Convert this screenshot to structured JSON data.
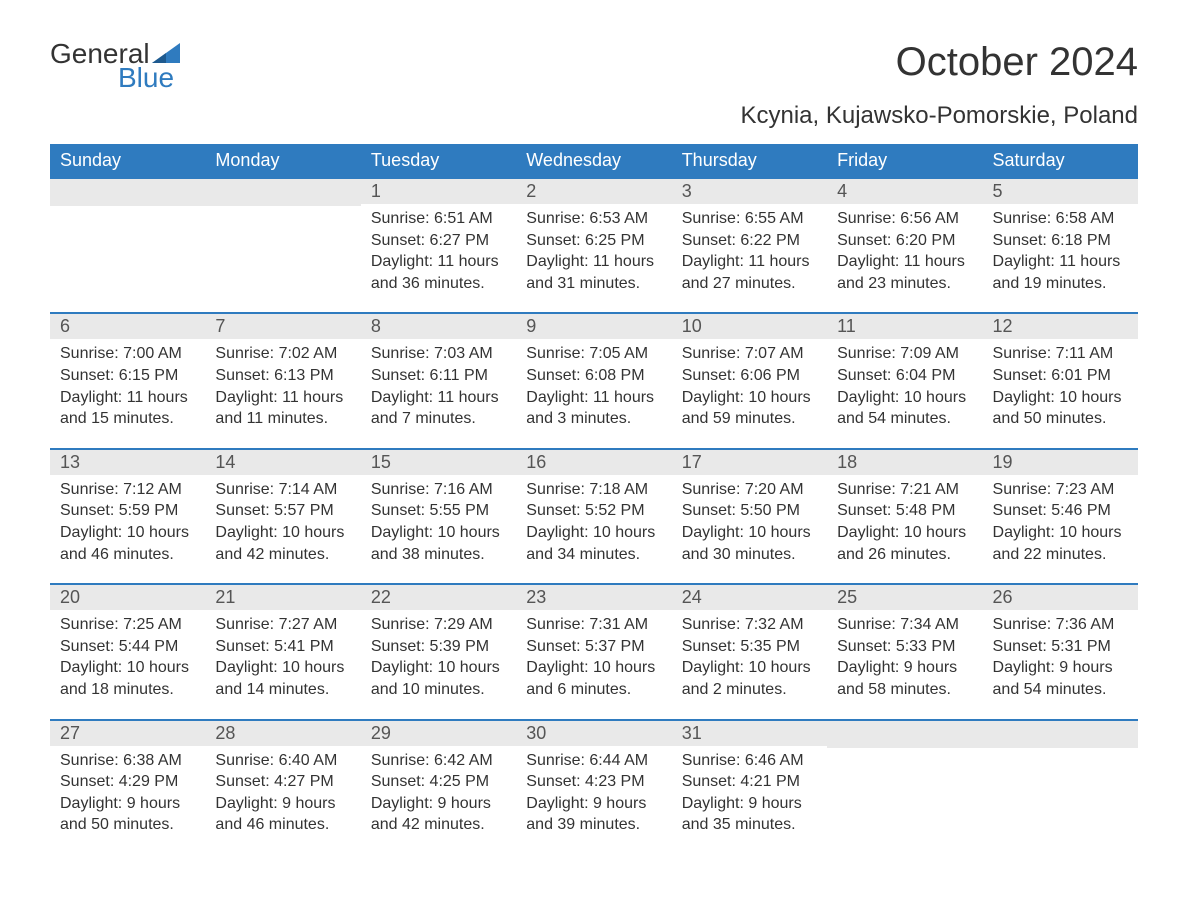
{
  "logo": {
    "part1": "General",
    "part2": "Blue"
  },
  "title": "October 2024",
  "location": "Kcynia, Kujawsko-Pomorskie, Poland",
  "colors": {
    "header_bg": "#2f7bbf",
    "header_text": "#ffffff",
    "daynum_bg": "#e9e9e9",
    "daynum_text": "#555555",
    "body_text": "#333333",
    "border": "#2f7bbf",
    "background": "#ffffff",
    "logo_accent": "#2f7bbf"
  },
  "typography": {
    "title_fontsize": 40,
    "location_fontsize": 24,
    "header_fontsize": 18,
    "daynum_fontsize": 18,
    "body_fontsize": 16,
    "logo_fontsize": 28
  },
  "weekdays": [
    "Sunday",
    "Monday",
    "Tuesday",
    "Wednesday",
    "Thursday",
    "Friday",
    "Saturday"
  ],
  "weeks": [
    [
      null,
      null,
      {
        "day": "1",
        "sunrise": "Sunrise: 6:51 AM",
        "sunset": "Sunset: 6:27 PM",
        "daylight1": "Daylight: 11 hours",
        "daylight2": "and 36 minutes."
      },
      {
        "day": "2",
        "sunrise": "Sunrise: 6:53 AM",
        "sunset": "Sunset: 6:25 PM",
        "daylight1": "Daylight: 11 hours",
        "daylight2": "and 31 minutes."
      },
      {
        "day": "3",
        "sunrise": "Sunrise: 6:55 AM",
        "sunset": "Sunset: 6:22 PM",
        "daylight1": "Daylight: 11 hours",
        "daylight2": "and 27 minutes."
      },
      {
        "day": "4",
        "sunrise": "Sunrise: 6:56 AM",
        "sunset": "Sunset: 6:20 PM",
        "daylight1": "Daylight: 11 hours",
        "daylight2": "and 23 minutes."
      },
      {
        "day": "5",
        "sunrise": "Sunrise: 6:58 AM",
        "sunset": "Sunset: 6:18 PM",
        "daylight1": "Daylight: 11 hours",
        "daylight2": "and 19 minutes."
      }
    ],
    [
      {
        "day": "6",
        "sunrise": "Sunrise: 7:00 AM",
        "sunset": "Sunset: 6:15 PM",
        "daylight1": "Daylight: 11 hours",
        "daylight2": "and 15 minutes."
      },
      {
        "day": "7",
        "sunrise": "Sunrise: 7:02 AM",
        "sunset": "Sunset: 6:13 PM",
        "daylight1": "Daylight: 11 hours",
        "daylight2": "and 11 minutes."
      },
      {
        "day": "8",
        "sunrise": "Sunrise: 7:03 AM",
        "sunset": "Sunset: 6:11 PM",
        "daylight1": "Daylight: 11 hours",
        "daylight2": "and 7 minutes."
      },
      {
        "day": "9",
        "sunrise": "Sunrise: 7:05 AM",
        "sunset": "Sunset: 6:08 PM",
        "daylight1": "Daylight: 11 hours",
        "daylight2": "and 3 minutes."
      },
      {
        "day": "10",
        "sunrise": "Sunrise: 7:07 AM",
        "sunset": "Sunset: 6:06 PM",
        "daylight1": "Daylight: 10 hours",
        "daylight2": "and 59 minutes."
      },
      {
        "day": "11",
        "sunrise": "Sunrise: 7:09 AM",
        "sunset": "Sunset: 6:04 PM",
        "daylight1": "Daylight: 10 hours",
        "daylight2": "and 54 minutes."
      },
      {
        "day": "12",
        "sunrise": "Sunrise: 7:11 AM",
        "sunset": "Sunset: 6:01 PM",
        "daylight1": "Daylight: 10 hours",
        "daylight2": "and 50 minutes."
      }
    ],
    [
      {
        "day": "13",
        "sunrise": "Sunrise: 7:12 AM",
        "sunset": "Sunset: 5:59 PM",
        "daylight1": "Daylight: 10 hours",
        "daylight2": "and 46 minutes."
      },
      {
        "day": "14",
        "sunrise": "Sunrise: 7:14 AM",
        "sunset": "Sunset: 5:57 PM",
        "daylight1": "Daylight: 10 hours",
        "daylight2": "and 42 minutes."
      },
      {
        "day": "15",
        "sunrise": "Sunrise: 7:16 AM",
        "sunset": "Sunset: 5:55 PM",
        "daylight1": "Daylight: 10 hours",
        "daylight2": "and 38 minutes."
      },
      {
        "day": "16",
        "sunrise": "Sunrise: 7:18 AM",
        "sunset": "Sunset: 5:52 PM",
        "daylight1": "Daylight: 10 hours",
        "daylight2": "and 34 minutes."
      },
      {
        "day": "17",
        "sunrise": "Sunrise: 7:20 AM",
        "sunset": "Sunset: 5:50 PM",
        "daylight1": "Daylight: 10 hours",
        "daylight2": "and 30 minutes."
      },
      {
        "day": "18",
        "sunrise": "Sunrise: 7:21 AM",
        "sunset": "Sunset: 5:48 PM",
        "daylight1": "Daylight: 10 hours",
        "daylight2": "and 26 minutes."
      },
      {
        "day": "19",
        "sunrise": "Sunrise: 7:23 AM",
        "sunset": "Sunset: 5:46 PM",
        "daylight1": "Daylight: 10 hours",
        "daylight2": "and 22 minutes."
      }
    ],
    [
      {
        "day": "20",
        "sunrise": "Sunrise: 7:25 AM",
        "sunset": "Sunset: 5:44 PM",
        "daylight1": "Daylight: 10 hours",
        "daylight2": "and 18 minutes."
      },
      {
        "day": "21",
        "sunrise": "Sunrise: 7:27 AM",
        "sunset": "Sunset: 5:41 PM",
        "daylight1": "Daylight: 10 hours",
        "daylight2": "and 14 minutes."
      },
      {
        "day": "22",
        "sunrise": "Sunrise: 7:29 AM",
        "sunset": "Sunset: 5:39 PM",
        "daylight1": "Daylight: 10 hours",
        "daylight2": "and 10 minutes."
      },
      {
        "day": "23",
        "sunrise": "Sunrise: 7:31 AM",
        "sunset": "Sunset: 5:37 PM",
        "daylight1": "Daylight: 10 hours",
        "daylight2": "and 6 minutes."
      },
      {
        "day": "24",
        "sunrise": "Sunrise: 7:32 AM",
        "sunset": "Sunset: 5:35 PM",
        "daylight1": "Daylight: 10 hours",
        "daylight2": "and 2 minutes."
      },
      {
        "day": "25",
        "sunrise": "Sunrise: 7:34 AM",
        "sunset": "Sunset: 5:33 PM",
        "daylight1": "Daylight: 9 hours",
        "daylight2": "and 58 minutes."
      },
      {
        "day": "26",
        "sunrise": "Sunrise: 7:36 AM",
        "sunset": "Sunset: 5:31 PM",
        "daylight1": "Daylight: 9 hours",
        "daylight2": "and 54 minutes."
      }
    ],
    [
      {
        "day": "27",
        "sunrise": "Sunrise: 6:38 AM",
        "sunset": "Sunset: 4:29 PM",
        "daylight1": "Daylight: 9 hours",
        "daylight2": "and 50 minutes."
      },
      {
        "day": "28",
        "sunrise": "Sunrise: 6:40 AM",
        "sunset": "Sunset: 4:27 PM",
        "daylight1": "Daylight: 9 hours",
        "daylight2": "and 46 minutes."
      },
      {
        "day": "29",
        "sunrise": "Sunrise: 6:42 AM",
        "sunset": "Sunset: 4:25 PM",
        "daylight1": "Daylight: 9 hours",
        "daylight2": "and 42 minutes."
      },
      {
        "day": "30",
        "sunrise": "Sunrise: 6:44 AM",
        "sunset": "Sunset: 4:23 PM",
        "daylight1": "Daylight: 9 hours",
        "daylight2": "and 39 minutes."
      },
      {
        "day": "31",
        "sunrise": "Sunrise: 6:46 AM",
        "sunset": "Sunset: 4:21 PM",
        "daylight1": "Daylight: 9 hours",
        "daylight2": "and 35 minutes."
      },
      null,
      null
    ]
  ]
}
